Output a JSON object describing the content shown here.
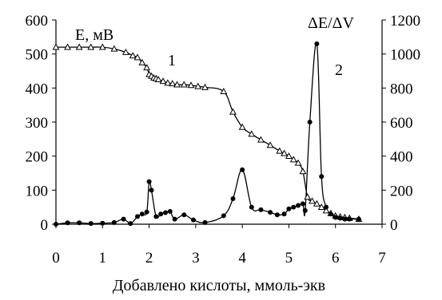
{
  "chart_data": {
    "type": "line",
    "xlabel": "Добавлено кислоты, ммоль-экв",
    "ylabel_left": "E, мВ",
    "ylabel_right": "ΔE/ΔV",
    "xlim": [
      0,
      7
    ],
    "ylim_left": [
      0,
      600
    ],
    "ylim_right": [
      0,
      1200
    ],
    "x_ticks": [
      "0",
      "1",
      "2",
      "3",
      "4",
      "5",
      "6",
      "7"
    ],
    "y_left_ticks": [
      "0",
      "100",
      "200",
      "300",
      "400",
      "500",
      "600"
    ],
    "y_right_ticks": [
      "0",
      "200",
      "400",
      "600",
      "800",
      "1000",
      "1200"
    ],
    "grid": false,
    "series": [
      {
        "name": "1",
        "axis": "left",
        "marker": "triangle",
        "x": [
          0,
          0.25,
          0.5,
          0.75,
          1.0,
          1.25,
          1.5,
          1.65,
          1.75,
          1.85,
          1.95,
          2.0,
          2.05,
          2.1,
          2.15,
          2.2,
          2.3,
          2.4,
          2.5,
          2.6,
          2.75,
          2.9,
          3.05,
          3.2,
          3.6,
          3.8,
          4.0,
          4.2,
          4.4,
          4.6,
          4.8,
          4.9,
          5.0,
          5.1,
          5.2,
          5.3,
          5.4,
          5.5,
          5.6,
          5.7,
          5.8,
          5.9,
          6.0,
          6.1,
          6.2,
          6.3,
          6.5
        ],
        "values": [
          520,
          520,
          520,
          520,
          520,
          515,
          505,
          495,
          490,
          475,
          460,
          440,
          435,
          430,
          428,
          425,
          420,
          415,
          413,
          410,
          410,
          408,
          405,
          402,
          390,
          330,
          285,
          265,
          248,
          232,
          215,
          208,
          200,
          190,
          180,
          155,
          80,
          68,
          60,
          50,
          40,
          32,
          25,
          22,
          20,
          18,
          15
        ]
      },
      {
        "name": "2",
        "axis": "right",
        "marker": "circle",
        "x": [
          0,
          0.25,
          0.5,
          0.75,
          1.0,
          1.25,
          1.45,
          1.6,
          1.75,
          1.85,
          1.95,
          2.0,
          2.05,
          2.15,
          2.25,
          2.35,
          2.45,
          2.55,
          2.75,
          2.95,
          3.2,
          3.6,
          3.8,
          4.0,
          4.2,
          4.4,
          4.6,
          4.75,
          4.9,
          5.0,
          5.1,
          5.2,
          5.3,
          5.35,
          5.45,
          5.6,
          5.7,
          5.8,
          5.9,
          6.0,
          6.1,
          6.2,
          6.3,
          6.5
        ],
        "values": [
          0,
          8,
          8,
          4,
          6,
          10,
          30,
          4,
          45,
          60,
          72,
          250,
          200,
          45,
          60,
          68,
          75,
          30,
          55,
          25,
          10,
          50,
          150,
          320,
          100,
          85,
          70,
          55,
          60,
          90,
          100,
          110,
          120,
          80,
          600,
          1060,
          280,
          100,
          60,
          40,
          35,
          30,
          30,
          30
        ]
      }
    ],
    "annotations": [
      {
        "text": "1",
        "x": 2.5,
        "y_left": 460
      },
      {
        "text": "2",
        "x": 6.4,
        "y_left": 490
      }
    ]
  }
}
